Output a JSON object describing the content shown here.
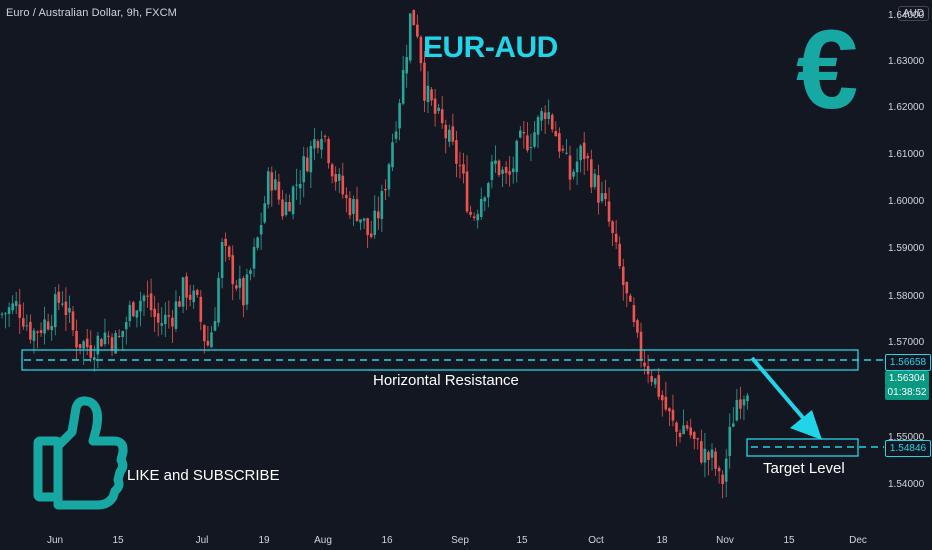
{
  "header": {
    "symbol_title": "Euro / Australian Dollar, 9h, FXCM",
    "currency": "AUD"
  },
  "annotations": {
    "main_title": "EUR-AUD",
    "euro_symbol": "€",
    "resistance_label": "Horizontal Resistance",
    "target_label": "Target Level",
    "like_label": "LIKE and SUBSCRIBE"
  },
  "price_tags": {
    "resistance": "1.56658",
    "current": "1.56304",
    "countdown": "01:38:52",
    "target": "1.54846"
  },
  "colors": {
    "background": "#131722",
    "up": "#26a69a",
    "down": "#ef5350",
    "accent": "#21d4e8",
    "thumb": "#17a8a3",
    "euro": "#17a8a3"
  },
  "icons": [
    "thumbs-up-icon",
    "euro-icon",
    "arrow-down-icon"
  ],
  "chart_data": {
    "type": "candlestick",
    "title": "EUR-AUD",
    "symbol": "Euro / Australian Dollar, 9h, FXCM",
    "y_ticks": [
      "1.54000",
      "1.55000",
      "1.56000",
      "1.57000",
      "1.58000",
      "1.59000",
      "1.60000",
      "1.61000",
      "1.62000",
      "1.63000",
      "1.64000"
    ],
    "x_ticks": [
      "Jun",
      "15",
      "Jul",
      "19",
      "Aug",
      "16",
      "Sep",
      "15",
      "Oct",
      "18",
      "Nov",
      "15",
      "Dec"
    ],
    "ylim": [
      1.535,
      1.648
    ],
    "grid": false,
    "resistance_zone": [
      1.5645,
      1.5687
    ],
    "resistance_level": 1.56658,
    "target_zone": [
      1.5468,
      1.5502
    ],
    "target_level": 1.54846,
    "current_price": 1.56304,
    "path": [
      [
        0,
        1.576
      ],
      [
        18,
        1.578
      ],
      [
        32,
        1.572
      ],
      [
        48,
        1.575
      ],
      [
        62,
        1.58
      ],
      [
        75,
        1.571
      ],
      [
        90,
        1.569
      ],
      [
        105,
        1.572
      ],
      [
        118,
        1.57
      ],
      [
        132,
        1.578
      ],
      [
        145,
        1.58
      ],
      [
        158,
        1.574
      ],
      [
        172,
        1.576
      ],
      [
        185,
        1.582
      ],
      [
        197,
        1.578
      ],
      [
        207,
        1.569
      ],
      [
        214,
        1.575
      ],
      [
        222,
        1.59
      ],
      [
        232,
        1.585
      ],
      [
        244,
        1.579
      ],
      [
        258,
        1.592
      ],
      [
        270,
        1.606
      ],
      [
        283,
        1.598
      ],
      [
        297,
        1.604
      ],
      [
        309,
        1.61
      ],
      [
        322,
        1.616
      ],
      [
        334,
        1.606
      ],
      [
        346,
        1.6
      ],
      [
        358,
        1.598
      ],
      [
        370,
        1.592
      ],
      [
        382,
        1.6
      ],
      [
        394,
        1.615
      ],
      [
        404,
        1.628
      ],
      [
        411,
        1.64
      ],
      [
        418,
        1.636
      ],
      [
        425,
        1.623
      ],
      [
        436,
        1.618
      ],
      [
        448,
        1.613
      ],
      [
        460,
        1.607
      ],
      [
        472,
        1.596
      ],
      [
        484,
        1.603
      ],
      [
        496,
        1.608
      ],
      [
        508,
        1.604
      ],
      [
        520,
        1.612
      ],
      [
        533,
        1.614
      ],
      [
        546,
        1.62
      ],
      [
        558,
        1.613
      ],
      [
        570,
        1.605
      ],
      [
        583,
        1.611
      ],
      [
        594,
        1.604
      ],
      [
        606,
        1.598
      ],
      [
        617,
        1.588
      ],
      [
        628,
        1.578
      ],
      [
        638,
        1.569
      ],
      [
        648,
        1.565
      ],
      [
        657,
        1.561
      ],
      [
        666,
        1.556
      ],
      [
        676,
        1.551
      ],
      [
        686,
        1.553
      ],
      [
        696,
        1.548
      ],
      [
        706,
        1.546
      ],
      [
        714,
        1.545
      ],
      [
        721,
        1.539
      ],
      [
        728,
        1.548
      ],
      [
        736,
        1.558
      ],
      [
        744,
        1.56
      ],
      [
        751,
        1.563
      ]
    ]
  }
}
